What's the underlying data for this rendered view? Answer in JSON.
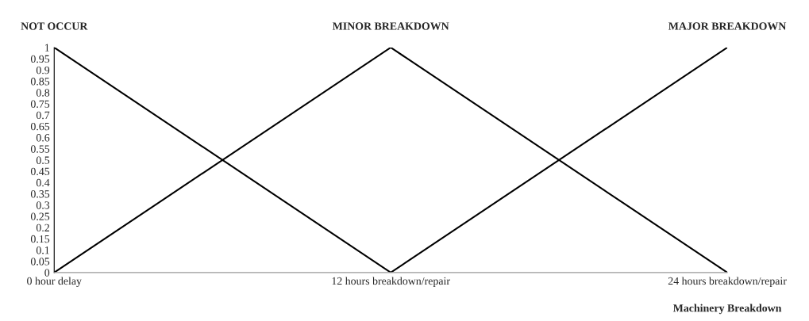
{
  "chart_data": {
    "type": "line",
    "categories": [
      "0 hour delay",
      "12 hours breakdown/repair",
      "24 hours breakdown/repair"
    ],
    "series": [
      {
        "name": "NOT OCCUR",
        "color": "#000000",
        "values": [
          1,
          0,
          null
        ]
      },
      {
        "name": "MINOR BREAKDOWN",
        "color": "#000000",
        "values": [
          0,
          1,
          0
        ]
      },
      {
        "name": "MAJOR BREAKDOWN",
        "color": "#000000",
        "values": [
          null,
          0,
          1
        ]
      }
    ],
    "xlabel": "Machinery Breakdown",
    "ylim": [
      0,
      1
    ],
    "yticks": [
      0,
      0.05,
      0.1,
      0.15,
      0.2,
      0.25,
      0.3,
      0.35,
      0.4,
      0.45,
      0.5,
      0.55,
      0.6,
      0.65,
      0.7,
      0.75,
      0.8,
      0.85,
      0.9,
      0.95,
      1
    ],
    "grid": false,
    "legend": false,
    "marker": "none",
    "line_style": "solid"
  }
}
